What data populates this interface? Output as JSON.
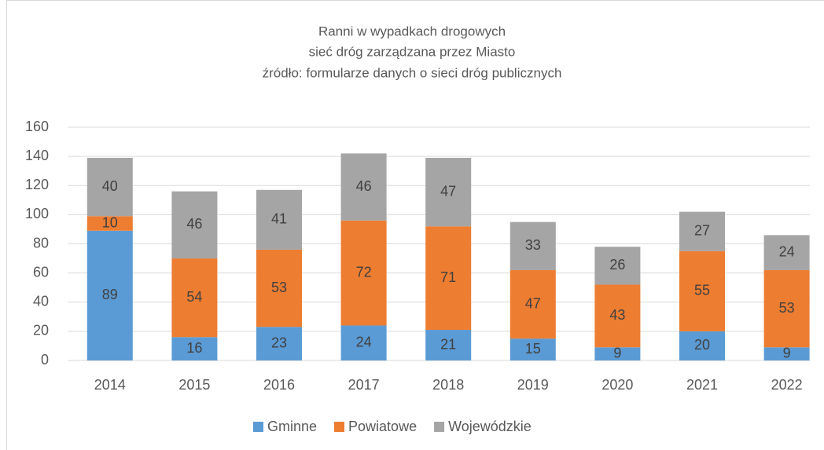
{
  "chart_data": {
    "type": "stacked_bar",
    "title": "Ranni w wypadkach drogowych",
    "subtitle": "sieć dróg zarządzana przez Miasto",
    "source": "źródło: formularze danych o sieci dróg publicznych",
    "categories": [
      "2014",
      "2015",
      "2016",
      "2017",
      "2018",
      "2019",
      "2020",
      "2021",
      "2022"
    ],
    "series": [
      {
        "name": "Gminne",
        "color": "#5b9bd5",
        "values": [
          89,
          16,
          23,
          24,
          21,
          15,
          9,
          20,
          9
        ]
      },
      {
        "name": "Powiatowe",
        "color": "#ed7d31",
        "values": [
          10,
          54,
          53,
          72,
          71,
          47,
          43,
          55,
          53
        ]
      },
      {
        "name": "Wojewódzkie",
        "color": "#a5a5a5",
        "values": [
          40,
          46,
          41,
          46,
          47,
          33,
          26,
          27,
          24
        ]
      }
    ],
    "ylim": [
      0,
      160
    ],
    "yticks": [
      0,
      20,
      40,
      60,
      80,
      100,
      120,
      140,
      160
    ],
    "grid": true,
    "legend": "bottom"
  }
}
